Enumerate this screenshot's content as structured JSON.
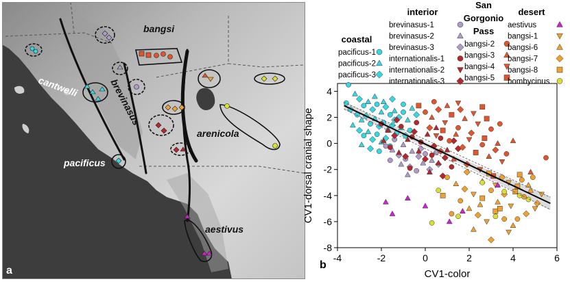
{
  "map": {
    "panel_label": "a",
    "region_labels": {
      "bangsi": "bangsi",
      "cantwelli": "cantwelli",
      "brevinasus": "brevinasus",
      "arenicola": "arenicola",
      "pacificus": "pacificus",
      "aestivus": "aestivus"
    },
    "colors": {
      "ocean": "#3d3d3d",
      "land": "#cfcfcf",
      "land_dark": "#aaaaaa",
      "boundary": "#111111"
    }
  },
  "legend": {
    "groups": [
      {
        "title": "coastal",
        "title_lines": [
          "coastal"
        ],
        "items": [
          {
            "label": "pacificus-1",
            "shape": "circle",
            "color": "#35d7e3"
          },
          {
            "label": "pacificus-2",
            "shape": "triangle",
            "color": "#35d7e3"
          },
          {
            "label": "pacificus-3",
            "shape": "diamond",
            "color": "#35d7e3"
          }
        ]
      },
      {
        "title": "interior",
        "title_lines": [
          "interior"
        ],
        "items": [
          {
            "label": "brevinasus-1",
            "shape": "circle",
            "color": "#b09ac7"
          },
          {
            "label": "brevinasus-2",
            "shape": "triangle",
            "color": "#b09ac7"
          },
          {
            "label": "brevinasus-3",
            "shape": "diamond",
            "color": "#b09ac7"
          },
          {
            "label": "internationalis-1",
            "shape": "circle",
            "color": "#b8262b"
          },
          {
            "label": "internationalis-2",
            "shape": "triangle-down",
            "color": "#b8262b"
          },
          {
            "label": "internationalis-3",
            "shape": "diamond",
            "color": "#b8262b"
          }
        ]
      },
      {
        "title": "San Gorgonio Pass",
        "title_lines": [
          "San",
          "Gorgonio",
          "Pass"
        ],
        "items": [
          {
            "label": "bangsi-2",
            "shape": "circle",
            "color": "#e2552a"
          },
          {
            "label": "bangsi-3",
            "shape": "triangle",
            "color": "#e2552a"
          },
          {
            "label": "bangsi-4",
            "shape": "triangle-down",
            "color": "#e2552a"
          },
          {
            "label": "bangsi-5",
            "shape": "square",
            "color": "#e2552a"
          }
        ]
      },
      {
        "title": "desert",
        "title_lines": [
          "desert"
        ],
        "items": [
          {
            "label": "aestivus",
            "shape": "triangle",
            "color": "#d21fd2"
          },
          {
            "label": "bangsi-1",
            "shape": "triangle-down",
            "color": "#f0a030"
          },
          {
            "label": "bangsi-6",
            "shape": "triangle",
            "color": "#f0a030"
          },
          {
            "label": "bangsi-7",
            "shape": "diamond",
            "color": "#f0a030"
          },
          {
            "label": "bangsi-8",
            "shape": "square",
            "color": "#f0a030"
          },
          {
            "label": "bombycinus",
            "shape": "circle",
            "color": "#d8e030"
          }
        ]
      }
    ]
  },
  "chart_data": {
    "type": "scatter",
    "panel_label": "b",
    "xlabel": "CV1-color",
    "ylabel": "CV1-dorsal cranial shape",
    "xlim": [
      -4,
      6
    ],
    "ylim": [
      -8,
      4.6
    ],
    "xticks": [
      -4,
      -2,
      0,
      2,
      4,
      6
    ],
    "yticks": [
      -8,
      -6,
      -4,
      -2,
      0,
      2,
      4
    ],
    "regression_line": {
      "x": [
        -3.7,
        5.7
      ],
      "y": [
        2.9,
        -4.6
      ]
    },
    "series": [
      {
        "name": "pacificus",
        "color": "#35d7e3",
        "points": [
          [
            -3.5,
            4.5
          ],
          [
            -3.2,
            3.8
          ],
          [
            -3,
            3.4
          ],
          [
            -2.8,
            2.9
          ],
          [
            -2.6,
            3.2
          ],
          [
            -2.4,
            2.6
          ],
          [
            -2.2,
            3
          ],
          [
            -2,
            2.4
          ],
          [
            -1.8,
            2.8
          ],
          [
            -1.6,
            2.2
          ],
          [
            -1.4,
            2.5
          ],
          [
            -1.2,
            2
          ],
          [
            -1,
            2.4
          ],
          [
            -0.8,
            1.8
          ],
          [
            -3.4,
            2.6
          ],
          [
            -3.1,
            2.2
          ],
          [
            -2.9,
            1.8
          ],
          [
            -2.7,
            2.1
          ],
          [
            -2.5,
            1.5
          ],
          [
            -2.3,
            1.9
          ],
          [
            -2.1,
            1.3
          ],
          [
            -1.9,
            1.6
          ],
          [
            -1.7,
            1.1
          ],
          [
            -1.5,
            1.4
          ],
          [
            -1.3,
            0.8
          ],
          [
            -1.1,
            1.2
          ],
          [
            -0.9,
            0.6
          ],
          [
            -0.7,
            1
          ],
          [
            -3.3,
            1.4
          ],
          [
            -3,
            1
          ],
          [
            -2.8,
            0.6
          ],
          [
            -2.6,
            0.9
          ],
          [
            -2.4,
            0.3
          ],
          [
            -2.2,
            0.7
          ],
          [
            -2,
            0.1
          ],
          [
            -1.8,
            0.4
          ],
          [
            -1.6,
            -0.2
          ],
          [
            -2.9,
            -0.1
          ],
          [
            -2.5,
            -0.4
          ],
          [
            -2.1,
            -0.6
          ],
          [
            -1.9,
            3.2
          ],
          [
            -1.5,
            3.4
          ],
          [
            -1,
            3
          ],
          [
            -0.6,
            2.7
          ],
          [
            -0.4,
            2.2
          ],
          [
            -3.6,
            3.1
          ],
          [
            -2.3,
            3.6
          ],
          [
            -1.4,
            1.8
          ]
        ]
      },
      {
        "name": "brevinasus",
        "color": "#b09ac7",
        "points": [
          [
            -1.8,
            -0.2
          ],
          [
            -1.5,
            -0.5
          ],
          [
            -1.2,
            -0.9
          ],
          [
            -0.9,
            -1.2
          ],
          [
            -0.6,
            -0.6
          ],
          [
            -0.3,
            -1
          ],
          [
            0,
            -0.8
          ],
          [
            0.3,
            -1.3
          ],
          [
            0.6,
            -1.6
          ],
          [
            -1.4,
            0.3
          ],
          [
            -1,
            -0.1
          ],
          [
            -0.7,
            -1.8
          ],
          [
            -0.4,
            -2.1
          ],
          [
            -0.1,
            -1.5
          ],
          [
            0.2,
            -2
          ],
          [
            -1.6,
            -1.3
          ],
          [
            -0.8,
            -2.4
          ],
          [
            -0.2,
            -0.4
          ],
          [
            0.5,
            -0.7
          ],
          [
            -1.1,
            -1.6
          ]
        ]
      },
      {
        "name": "internationalis",
        "color": "#b8262b",
        "points": [
          [
            -2,
            1.5
          ],
          [
            -1.7,
            1
          ],
          [
            -1.4,
            0.6
          ],
          [
            -1.1,
            1.3
          ],
          [
            -0.8,
            0.3
          ],
          [
            -0.5,
            0.9
          ],
          [
            -0.2,
            0.1
          ],
          [
            0.1,
            0.7
          ],
          [
            0.4,
            -0.2
          ],
          [
            0.7,
            0.4
          ],
          [
            1,
            -0.5
          ],
          [
            1.3,
            0.2
          ],
          [
            -1.6,
            -0.3
          ],
          [
            -1.2,
            -0.7
          ],
          [
            -0.9,
            -1
          ],
          [
            -0.6,
            0.5
          ],
          [
            -0.3,
            -0.6
          ],
          [
            0,
            -1.2
          ],
          [
            0.3,
            -0.9
          ],
          [
            0.6,
            -1.5
          ],
          [
            0.9,
            -1.1
          ],
          [
            1.2,
            -1.8
          ],
          [
            -1.9,
            0.2
          ],
          [
            -1.3,
            1.8
          ],
          [
            -0.4,
            1.6
          ],
          [
            0.5,
            1.2
          ],
          [
            1.5,
            -0.4
          ],
          [
            -0.7,
            -1.9
          ],
          [
            0.2,
            -2.2
          ],
          [
            0.8,
            -2.5
          ]
        ]
      },
      {
        "name": "bangsi (San Gorgonio Pass)",
        "color": "#e2552a",
        "points": [
          [
            0,
            2.4
          ],
          [
            0.3,
            2
          ],
          [
            0.6,
            2.6
          ],
          [
            0.9,
            1.6
          ],
          [
            1.2,
            2.2
          ],
          [
            1.5,
            1.2
          ],
          [
            1.8,
            1.9
          ],
          [
            2.1,
            0.8
          ],
          [
            2.4,
            1.5
          ],
          [
            2.7,
            0.4
          ],
          [
            3,
            1.1
          ],
          [
            3.3,
            0
          ],
          [
            0.2,
            1.2
          ],
          [
            0.5,
            0.6
          ],
          [
            0.8,
            1
          ],
          [
            1.1,
            0.2
          ],
          [
            1.4,
            0.7
          ],
          [
            1.7,
            -0.3
          ],
          [
            2,
            0.3
          ],
          [
            2.3,
            -0.7
          ],
          [
            2.6,
            -0.1
          ],
          [
            2.9,
            -1
          ],
          [
            3.2,
            -0.5
          ],
          [
            3.5,
            -1.4
          ],
          [
            -0.3,
            2.9
          ],
          [
            0.4,
            3.2
          ],
          [
            1,
            2.9
          ],
          [
            1.6,
            2.6
          ],
          [
            2.2,
            2.3
          ],
          [
            2.8,
            1.9
          ],
          [
            3.4,
            1.5
          ],
          [
            1.3,
            -1.2
          ],
          [
            1.9,
            -1.6
          ],
          [
            2.5,
            -2
          ],
          [
            3.1,
            -2.5
          ],
          [
            3.7,
            -0.8
          ],
          [
            4,
            0.2
          ],
          [
            0.7,
            -0.6
          ],
          [
            1.5,
            3.1
          ],
          [
            2.6,
            2.8
          ],
          [
            5.5,
            -1.1
          ],
          [
            4.8,
            -2.2
          ]
        ]
      },
      {
        "name": "bangsi (desert)",
        "color": "#f0a030",
        "points": [
          [
            1,
            -2.6
          ],
          [
            1.4,
            -3.1
          ],
          [
            1.8,
            -3.5
          ],
          [
            2.2,
            -3.9
          ],
          [
            2.6,
            -4.2
          ],
          [
            3,
            -3.6
          ],
          [
            3.3,
            -4.5
          ],
          [
            3.6,
            -3.9
          ],
          [
            3.9,
            -4.8
          ],
          [
            4.2,
            -3.3
          ],
          [
            4.5,
            -4.1
          ],
          [
            4.8,
            -3.6
          ],
          [
            5.1,
            -4.6
          ],
          [
            3.8,
            -3
          ],
          [
            4.1,
            -3.7
          ],
          [
            4.4,
            -2.8
          ],
          [
            4.7,
            -3.2
          ],
          [
            3.5,
            -2.6
          ],
          [
            3.2,
            -3.2
          ],
          [
            2.9,
            -2.3
          ],
          [
            1.6,
            -4.4
          ],
          [
            2,
            -5
          ],
          [
            2.4,
            -5.5
          ],
          [
            2.8,
            -6
          ],
          [
            3.2,
            -5.2
          ],
          [
            3.6,
            -5.8
          ],
          [
            4,
            -6.3
          ],
          [
            4.6,
            -5.4
          ],
          [
            5,
            -5
          ],
          [
            0.8,
            -4
          ],
          [
            1.2,
            -5.4
          ],
          [
            2.2,
            -6.6
          ],
          [
            3,
            -7.4
          ],
          [
            3.8,
            -6.8
          ],
          [
            4.3,
            -2.4
          ],
          [
            4.9,
            -2.6
          ],
          [
            2.6,
            -2.9
          ],
          [
            1.9,
            -2.2
          ],
          [
            5.3,
            -3.9
          ],
          [
            3.4,
            -5
          ],
          [
            4.2,
            -5.8
          ],
          [
            2.5,
            -4.7
          ]
        ]
      },
      {
        "name": "aestivus",
        "color": "#d21fd2",
        "points": [
          [
            -1.8,
            -4.5
          ],
          [
            -0.8,
            -4.2
          ],
          [
            0,
            -4.8
          ],
          [
            1.1,
            -6
          ],
          [
            1.7,
            -5.2
          ],
          [
            3.3,
            -3.2
          ],
          [
            -1.5,
            -5.4
          ]
        ]
      },
      {
        "name": "bombycinus",
        "color": "#d8e030",
        "points": [
          [
            0.6,
            -3.6
          ],
          [
            1.5,
            -5.6
          ],
          [
            2.6,
            -3
          ],
          [
            3.6,
            -3.7
          ],
          [
            4.3,
            -4
          ],
          [
            4.7,
            -4.3
          ],
          [
            3.2,
            -5.6
          ],
          [
            0.3,
            -6.1
          ]
        ]
      }
    ]
  }
}
